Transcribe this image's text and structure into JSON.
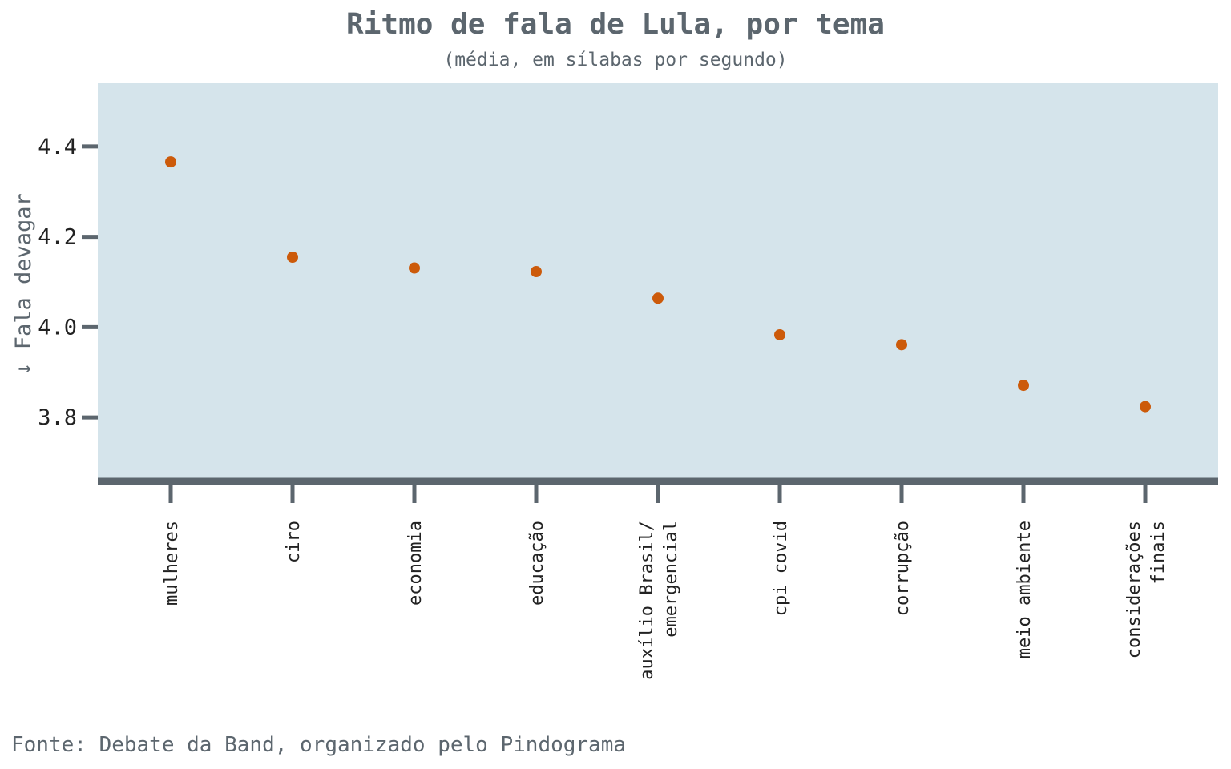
{
  "colors": {
    "panel_background": "#d5e4eb",
    "point": "#cc5a0a",
    "axis": "#5c666e",
    "text_muted": "#5c666e",
    "text_dark": "#222222"
  },
  "source_note": "Fonte: Debate da Band, organizado pelo Pindograma",
  "chart_data": {
    "type": "scatter",
    "title": "Ritmo de fala de Lula, por tema",
    "subtitle": "(média, em sílabas por segundo)",
    "xlabel": "",
    "ylabel": "↓ Fala devagar",
    "ylim": [
      3.66,
      4.54
    ],
    "yticks": [
      3.8,
      4.0,
      4.2,
      4.4
    ],
    "ytick_labels": [
      "3.8",
      "4.0",
      "4.2",
      "4.4"
    ],
    "grid": false,
    "categories": [
      [
        "mulheres"
      ],
      [
        "ciro"
      ],
      [
        "economia"
      ],
      [
        "educação"
      ],
      [
        "auxílio Brasil/",
        "emergencial"
      ],
      [
        "cpi covid"
      ],
      [
        "corrupção"
      ],
      [
        "meio ambiente"
      ],
      [
        "considerações",
        "finais"
      ]
    ],
    "values": [
      4.366,
      4.155,
      4.131,
      4.123,
      4.064,
      3.983,
      3.961,
      3.871,
      3.824
    ]
  }
}
